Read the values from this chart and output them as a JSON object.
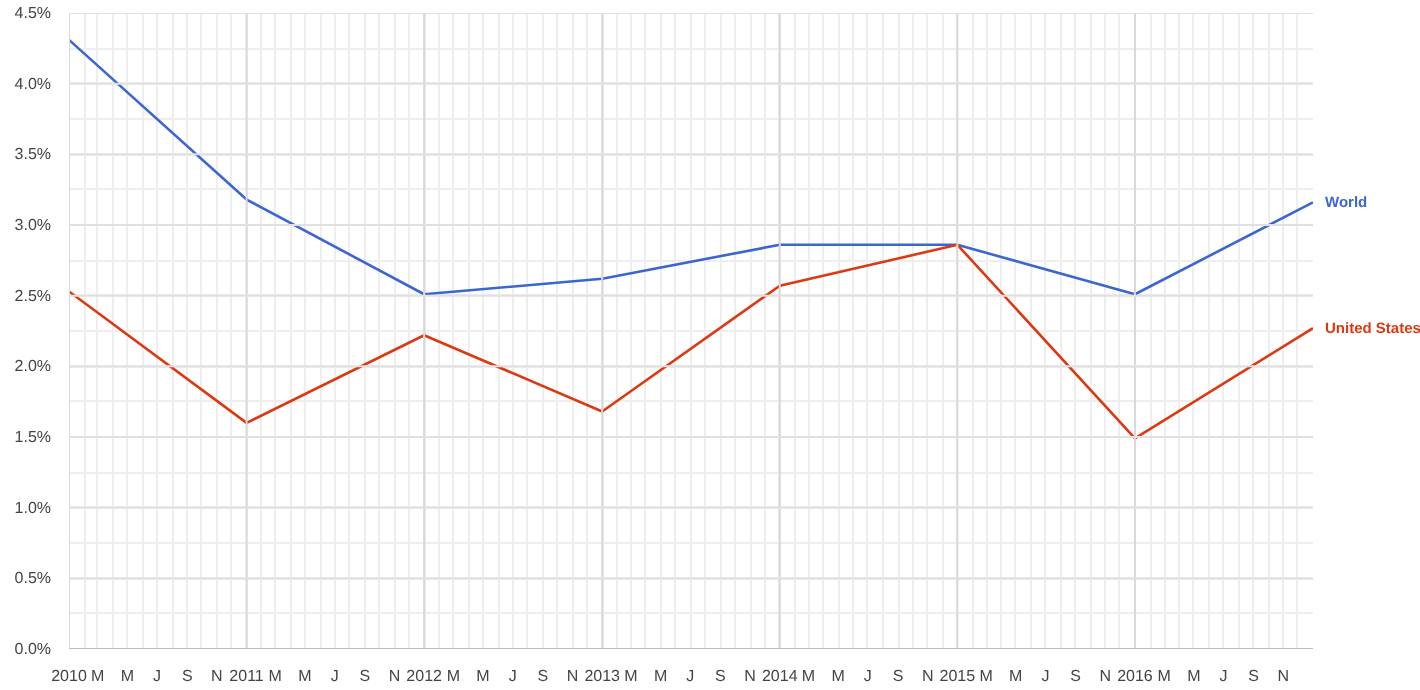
{
  "chart_data": {
    "type": "line",
    "x": [
      "2010",
      "2011",
      "2012",
      "2013",
      "2014",
      "2015",
      "2016",
      "2017"
    ],
    "series": [
      {
        "name": "World",
        "color": "#3b66d1",
        "values": [
          4.31,
          3.18,
          2.51,
          2.62,
          2.86,
          2.86,
          2.51,
          3.16
        ]
      },
      {
        "name": "United States",
        "color": "#dc3912",
        "values": [
          2.53,
          1.6,
          2.22,
          1.68,
          2.57,
          2.86,
          1.49,
          2.27
        ]
      }
    ],
    "xlim": [
      "2010",
      "2017"
    ],
    "xticks": [
      {
        "value": "2010",
        "label": "2010"
      },
      {
        "value": "2010-02",
        "label": null
      },
      {
        "value": "2010-03",
        "label": "M"
      },
      {
        "value": "2010-04",
        "label": null
      },
      {
        "value": "2010-05",
        "label": "M"
      },
      {
        "value": "2010-06",
        "label": null
      },
      {
        "value": "2010-07",
        "label": "J"
      },
      {
        "value": "2010-08",
        "label": null
      },
      {
        "value": "2010-09",
        "label": "S"
      },
      {
        "value": "2010-10",
        "label": null
      },
      {
        "value": "2010-11",
        "label": "N"
      },
      {
        "value": "2010-12",
        "label": null
      },
      {
        "value": "2011",
        "label": "2011"
      },
      {
        "value": "2011-02",
        "label": null
      },
      {
        "value": "2011-03",
        "label": "M"
      },
      {
        "value": "2011-04",
        "label": null
      },
      {
        "value": "2011-05",
        "label": "M"
      },
      {
        "value": "2011-06",
        "label": null
      },
      {
        "value": "2011-07",
        "label": "J"
      },
      {
        "value": "2011-08",
        "label": null
      },
      {
        "value": "2011-09",
        "label": "S"
      },
      {
        "value": "2011-10",
        "label": null
      },
      {
        "value": "2011-11",
        "label": "N"
      },
      {
        "value": "2011-12",
        "label": null
      },
      {
        "value": "2012",
        "label": "2012"
      },
      {
        "value": "2012-02",
        "label": null
      },
      {
        "value": "2012-03",
        "label": "M"
      },
      {
        "value": "2012-04",
        "label": null
      },
      {
        "value": "2012-05",
        "label": "M"
      },
      {
        "value": "2012-06",
        "label": null
      },
      {
        "value": "2012-07",
        "label": "J"
      },
      {
        "value": "2012-08",
        "label": null
      },
      {
        "value": "2012-09",
        "label": "S"
      },
      {
        "value": "2012-10",
        "label": null
      },
      {
        "value": "2012-11",
        "label": "N"
      },
      {
        "value": "2012-12",
        "label": null
      },
      {
        "value": "2013",
        "label": "2013"
      },
      {
        "value": "2013-02",
        "label": null
      },
      {
        "value": "2013-03",
        "label": "M"
      },
      {
        "value": "2013-04",
        "label": null
      },
      {
        "value": "2013-05",
        "label": "M"
      },
      {
        "value": "2013-06",
        "label": null
      },
      {
        "value": "2013-07",
        "label": "J"
      },
      {
        "value": "2013-08",
        "label": null
      },
      {
        "value": "2013-09",
        "label": "S"
      },
      {
        "value": "2013-10",
        "label": null
      },
      {
        "value": "2013-11",
        "label": "N"
      },
      {
        "value": "2013-12",
        "label": null
      },
      {
        "value": "2014",
        "label": "2014"
      },
      {
        "value": "2014-02",
        "label": null
      },
      {
        "value": "2014-03",
        "label": "M"
      },
      {
        "value": "2014-04",
        "label": null
      },
      {
        "value": "2014-05",
        "label": "M"
      },
      {
        "value": "2014-06",
        "label": null
      },
      {
        "value": "2014-07",
        "label": "J"
      },
      {
        "value": "2014-08",
        "label": null
      },
      {
        "value": "2014-09",
        "label": "S"
      },
      {
        "value": "2014-10",
        "label": null
      },
      {
        "value": "2014-11",
        "label": "N"
      },
      {
        "value": "2014-12",
        "label": null
      },
      {
        "value": "2015",
        "label": "2015"
      },
      {
        "value": "2015-02",
        "label": null
      },
      {
        "value": "2015-03",
        "label": "M"
      },
      {
        "value": "2015-04",
        "label": null
      },
      {
        "value": "2015-05",
        "label": "M"
      },
      {
        "value": "2015-06",
        "label": null
      },
      {
        "value": "2015-07",
        "label": "J"
      },
      {
        "value": "2015-08",
        "label": null
      },
      {
        "value": "2015-09",
        "label": "S"
      },
      {
        "value": "2015-10",
        "label": null
      },
      {
        "value": "2015-11",
        "label": "N"
      },
      {
        "value": "2015-12",
        "label": null
      },
      {
        "value": "2016",
        "label": "2016"
      },
      {
        "value": "2016-02",
        "label": null
      },
      {
        "value": "2016-03",
        "label": "M"
      },
      {
        "value": "2016-04",
        "label": null
      },
      {
        "value": "2016-05",
        "label": "M"
      },
      {
        "value": "2016-06",
        "label": null
      },
      {
        "value": "2016-07",
        "label": "J"
      },
      {
        "value": "2016-08",
        "label": null
      },
      {
        "value": "2016-09",
        "label": "S"
      },
      {
        "value": "2016-10",
        "label": null
      },
      {
        "value": "2016-11",
        "label": "N"
      },
      {
        "value": "2016-12",
        "label": null
      }
    ],
    "ylim": [
      0,
      4.5
    ],
    "yticks": [
      {
        "value": 0,
        "label": "0.0%"
      },
      {
        "value": 0.25,
        "label": null
      },
      {
        "value": 0.5,
        "label": "0.5%"
      },
      {
        "value": 0.75,
        "label": null
      },
      {
        "value": 1,
        "label": "1.0%"
      },
      {
        "value": 1.25,
        "label": null
      },
      {
        "value": 1.5,
        "label": "1.5%"
      },
      {
        "value": 1.75,
        "label": null
      },
      {
        "value": 2,
        "label": "2.0%"
      },
      {
        "value": 2.25,
        "label": null
      },
      {
        "value": 2.5,
        "label": "2.5%"
      },
      {
        "value": 2.75,
        "label": null
      },
      {
        "value": 3,
        "label": "3.0%"
      },
      {
        "value": 3.25,
        "label": null
      },
      {
        "value": 3.5,
        "label": "3.5%"
      },
      {
        "value": 3.75,
        "label": null
      },
      {
        "value": 4,
        "label": "4.0%"
      },
      {
        "value": 4.25,
        "label": null
      },
      {
        "value": 4.5,
        "label": "4.5%"
      }
    ],
    "grid": true,
    "marker": "none",
    "line_style": "solid"
  }
}
